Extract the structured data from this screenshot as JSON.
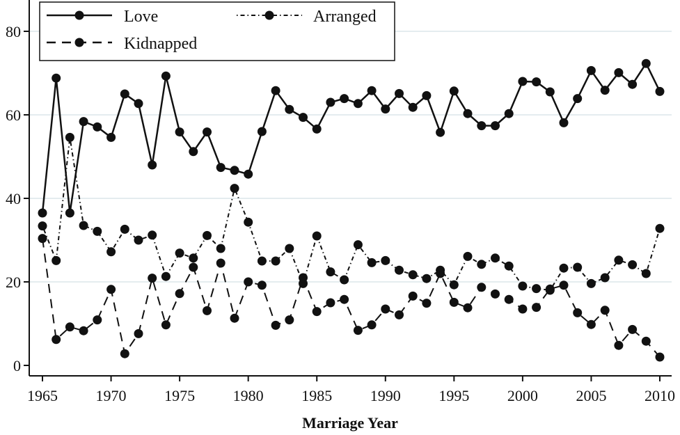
{
  "chart_data": {
    "type": "line",
    "title": "",
    "xlabel": "Marriage Year",
    "ylabel": "",
    "xlim": [
      1965,
      2010
    ],
    "ylim": [
      0,
      80
    ],
    "x_ticks": [
      "1965",
      "1970",
      "1975",
      "1980",
      "1985",
      "1990",
      "1995",
      "2000",
      "2005",
      "2010"
    ],
    "y_ticks": [
      "0",
      "20",
      "40",
      "60",
      "80"
    ],
    "grid": "horizontal",
    "legend_position": "top",
    "x": [
      1965,
      1966,
      1967,
      1968,
      1969,
      1970,
      1971,
      1972,
      1973,
      1974,
      1975,
      1976,
      1977,
      1978,
      1979,
      1980,
      1981,
      1982,
      1983,
      1984,
      1985,
      1986,
      1987,
      1988,
      1989,
      1990,
      1991,
      1992,
      1993,
      1994,
      1995,
      1996,
      1997,
      1998,
      1999,
      2000,
      2001,
      2002,
      2003,
      2004,
      2005,
      2006,
      2007,
      2008,
      2009,
      2010
    ],
    "series": [
      {
        "name": "Love",
        "style": "solid",
        "values": [
          36.5,
          68.8,
          36.5,
          58.4,
          57.1,
          54.6,
          65.0,
          62.7,
          48.0,
          69.3,
          55.9,
          51.2,
          55.9,
          47.4,
          46.7,
          45.8,
          56.0,
          65.8,
          61.3,
          59.4,
          56.6,
          63.0,
          63.9,
          62.7,
          65.8,
          61.4,
          65.1,
          61.8,
          64.6,
          55.8,
          65.7,
          60.3,
          57.4,
          57.4,
          60.3,
          68.0,
          67.9,
          65.5,
          58.1,
          63.9,
          70.6,
          65.9,
          70.1,
          67.3,
          72.3,
          65.6
        ]
      },
      {
        "name": "Kidnapped",
        "style": "dashed",
        "values": [
          30.4,
          6.2,
          9.2,
          8.3,
          10.9,
          18.2,
          2.8,
          7.6,
          20.9,
          9.7,
          17.2,
          23.5,
          13.1,
          24.5,
          11.3,
          20.0,
          19.2,
          9.6,
          10.9,
          21.0,
          12.9,
          15.0,
          15.8,
          8.4,
          9.7,
          13.5,
          12.1,
          16.6,
          14.9,
          22.0,
          15.1,
          13.8,
          18.7,
          17.1,
          15.8,
          13.5,
          13.9,
          18.3,
          19.2,
          12.6,
          9.8,
          13.2,
          4.8,
          8.6,
          5.8,
          2.0
        ]
      },
      {
        "name": "Arranged",
        "style": "dotted",
        "values": [
          33.4,
          25.1,
          54.6,
          33.5,
          32.1,
          27.2,
          32.6,
          30.0,
          31.2,
          21.3,
          26.9,
          25.7,
          31.1,
          28.0,
          42.4,
          34.3,
          25.0,
          25.0,
          28.0,
          19.6,
          31.0,
          22.4,
          20.5,
          28.9,
          24.6,
          25.1,
          22.8,
          21.7,
          20.8,
          22.8,
          19.3,
          26.1,
          24.2,
          25.7,
          23.8,
          19.0,
          18.4,
          18.0,
          23.3,
          23.5,
          19.6,
          21.0,
          25.2,
          24.1,
          22.0,
          32.8
        ]
      }
    ]
  }
}
